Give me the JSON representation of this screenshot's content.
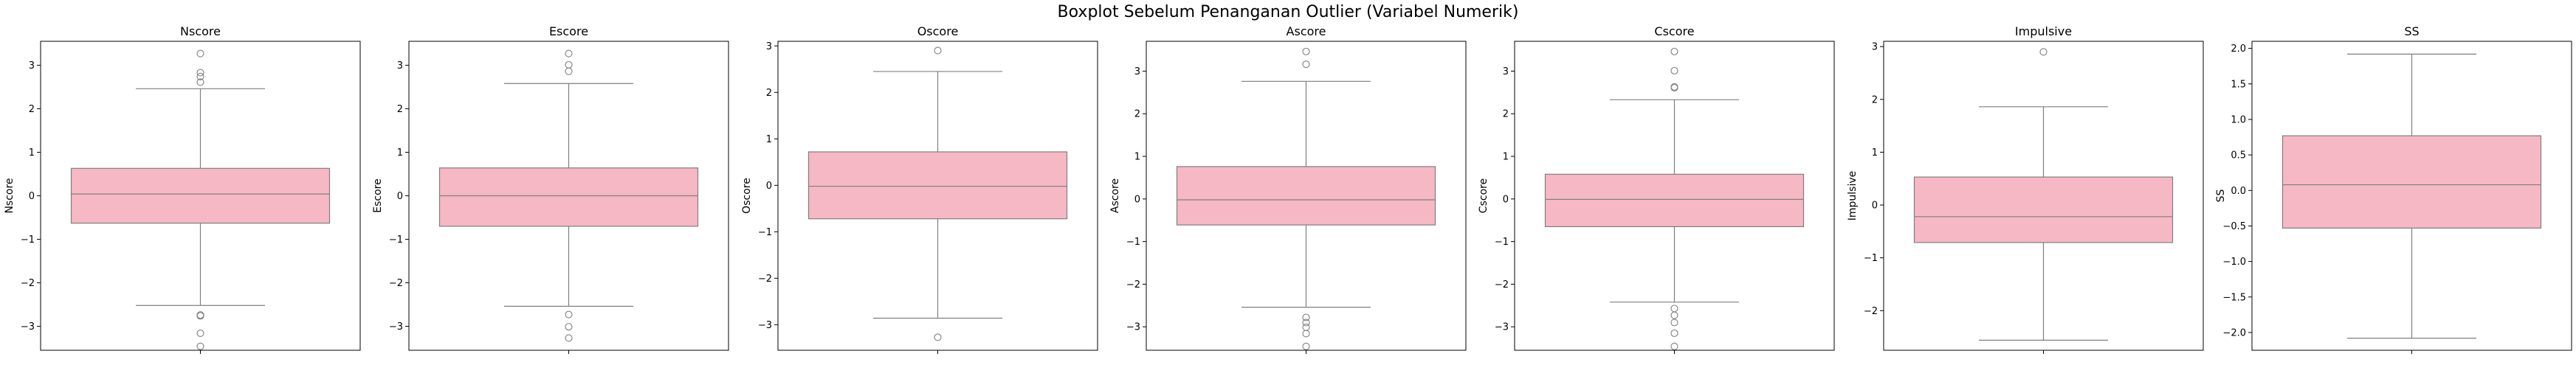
{
  "suptitle": "Boxplot Sebelum Penanganan Outlier (Variabel Numerik)",
  "chart_data": [
    {
      "type": "box",
      "title": "Nscore",
      "xlabel": "",
      "ylabel": "Nscore",
      "ylim": [
        -3.55,
        3.55
      ],
      "yticks": [
        -3,
        -2,
        -1,
        0,
        1,
        2,
        3
      ],
      "box": {
        "q1": -0.63,
        "median": 0.04,
        "q3": 0.63,
        "whisker_low": -2.52,
        "whisker_high": 2.46
      },
      "outliers": [
        3.27,
        2.83,
        2.74,
        2.61,
        -2.74,
        -2.76,
        -3.16,
        -3.46
      ]
    },
    {
      "type": "box",
      "title": "Escore",
      "xlabel": "",
      "ylabel": "Escore",
      "ylim": [
        -3.55,
        3.55
      ],
      "yticks": [
        -3,
        -2,
        -1,
        0,
        1,
        2,
        3
      ],
      "box": {
        "q1": -0.7,
        "median": 0.0,
        "q3": 0.64,
        "whisker_low": -2.54,
        "whisker_high": 2.58
      },
      "outliers": [
        3.27,
        3.01,
        2.86,
        -2.73,
        -3.01,
        -3.27
      ]
    },
    {
      "type": "box",
      "title": "Oscore",
      "xlabel": "",
      "ylabel": "Oscore",
      "ylim": [
        -3.55,
        3.1
      ],
      "yticks": [
        -3,
        -2,
        -1,
        0,
        1,
        2,
        3
      ],
      "box": {
        "q1": -0.72,
        "median": -0.02,
        "q3": 0.72,
        "whisker_low": -2.86,
        "whisker_high": 2.45
      },
      "outliers": [
        2.9,
        -3.27
      ]
    },
    {
      "type": "box",
      "title": "Ascore",
      "xlabel": "",
      "ylabel": "Ascore",
      "ylim": [
        -3.55,
        3.7
      ],
      "yticks": [
        -3,
        -2,
        -1,
        0,
        1,
        2,
        3
      ],
      "box": {
        "q1": -0.61,
        "median": -0.02,
        "q3": 0.76,
        "whisker_low": -2.54,
        "whisker_high": 2.76
      },
      "outliers": [
        3.46,
        3.16,
        -2.78,
        -2.9,
        -3.01,
        -3.16,
        -3.46
      ]
    },
    {
      "type": "box",
      "title": "Cscore",
      "xlabel": "",
      "ylabel": "Cscore",
      "ylim": [
        -3.55,
        3.7
      ],
      "yticks": [
        -3,
        -2,
        -1,
        0,
        1,
        2,
        3
      ],
      "box": {
        "q1": -0.65,
        "median": -0.01,
        "q3": 0.58,
        "whisker_low": -2.42,
        "whisker_high": 2.33
      },
      "outliers": [
        3.46,
        3.01,
        2.63,
        2.61,
        -2.57,
        -2.73,
        -2.9,
        -3.15,
        -3.46
      ]
    },
    {
      "type": "box",
      "title": "Impulsive",
      "xlabel": "",
      "ylabel": "Impulsive",
      "ylim": [
        -2.75,
        3.1
      ],
      "yticks": [
        -2,
        -1,
        0,
        1,
        2,
        3
      ],
      "box": {
        "q1": -0.71,
        "median": -0.22,
        "q3": 0.53,
        "whisker_low": -2.56,
        "whisker_high": 1.86
      },
      "outliers": [
        2.9
      ]
    },
    {
      "type": "box",
      "title": "SS",
      "xlabel": "",
      "ylabel": "SS",
      "ylim": [
        -2.25,
        2.1
      ],
      "yticks": [
        -2.0,
        -1.5,
        -1.0,
        -0.5,
        0.0,
        0.5,
        1.0,
        1.5,
        2.0
      ],
      "box": {
        "q1": -0.53,
        "median": 0.08,
        "q3": 0.77,
        "whisker_low": -2.08,
        "whisker_high": 1.92
      },
      "outliers": []
    }
  ],
  "style": {
    "box_fill": "#f6b8c4",
    "line_color": "#7f7f7f",
    "frame_color": "#000000"
  }
}
